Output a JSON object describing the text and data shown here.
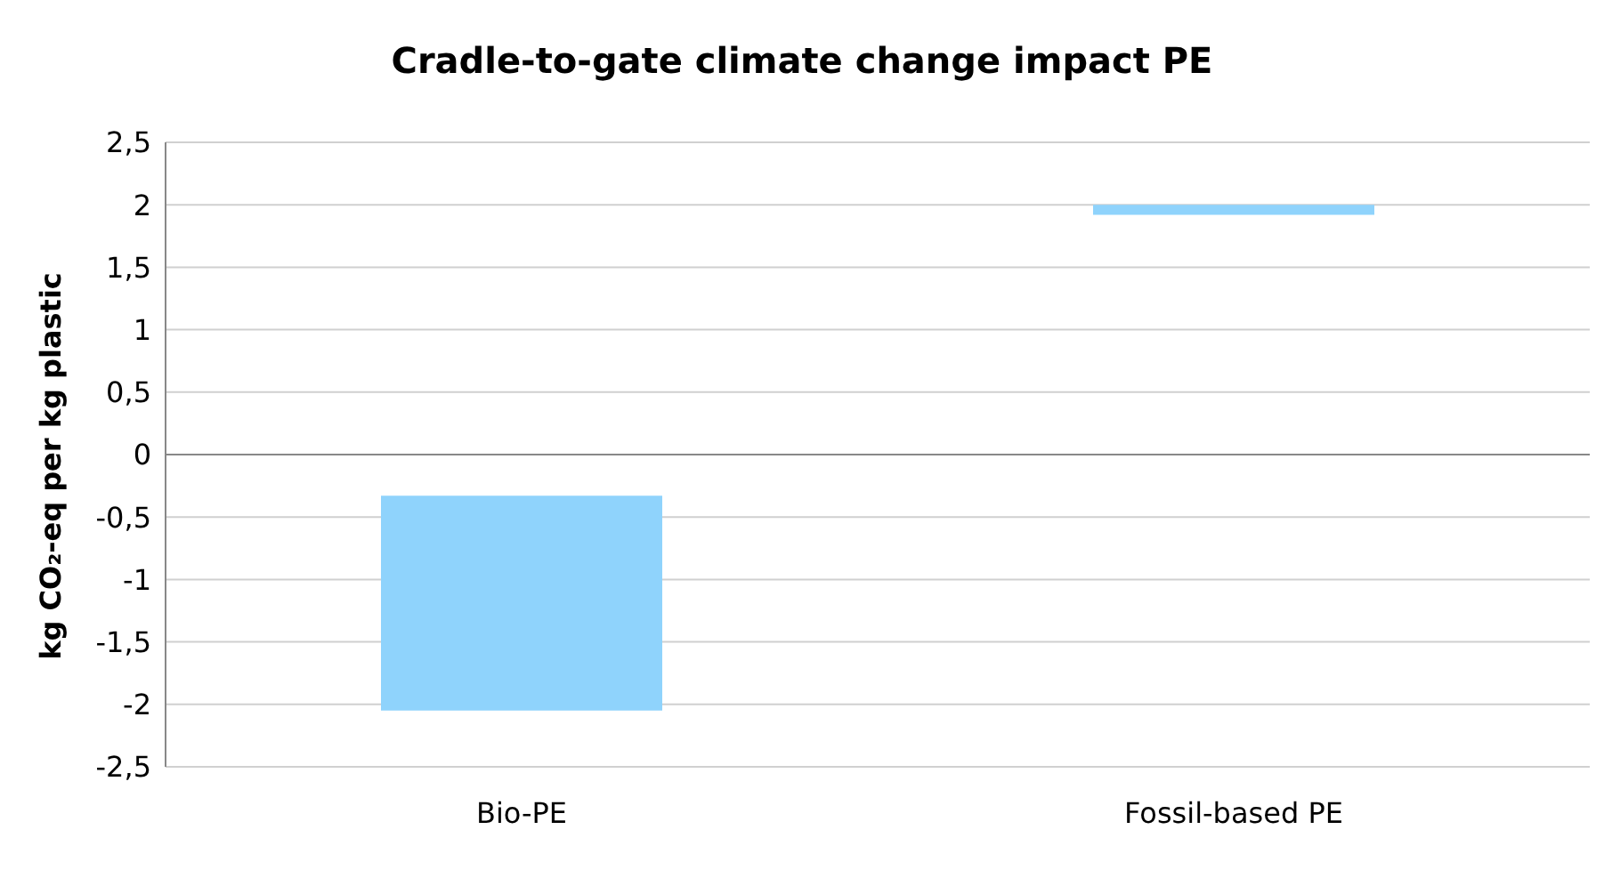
{
  "chart_data": {
    "type": "bar",
    "title": "Cradle-to-gate climate change impact PE",
    "ylabel": "kg CO₂-eq per kg plastic",
    "categories": [
      "Bio-PE",
      "Fossil-based PE"
    ],
    "values": [
      1.72,
      0.08
    ],
    "base": [
      -2.05,
      1.92
    ],
    "color": "#8fd3fc",
    "ylim": [
      -2.5,
      2.5
    ],
    "yticks": [
      {
        "value": -2.5,
        "label": "-2,5"
      },
      {
        "value": -2,
        "label": "-2"
      },
      {
        "value": -1.5,
        "label": "-1,5"
      },
      {
        "value": -1,
        "label": "-1"
      },
      {
        "value": -0.5,
        "label": "-0,5"
      },
      {
        "value": 0,
        "label": "0"
      },
      {
        "value": 0.5,
        "label": "0,5"
      },
      {
        "value": 1,
        "label": "1"
      },
      {
        "value": 1.5,
        "label": "1,5"
      },
      {
        "value": 2,
        "label": "2"
      },
      {
        "value": 2.5,
        "label": "2,5"
      }
    ],
    "grid": "y"
  }
}
